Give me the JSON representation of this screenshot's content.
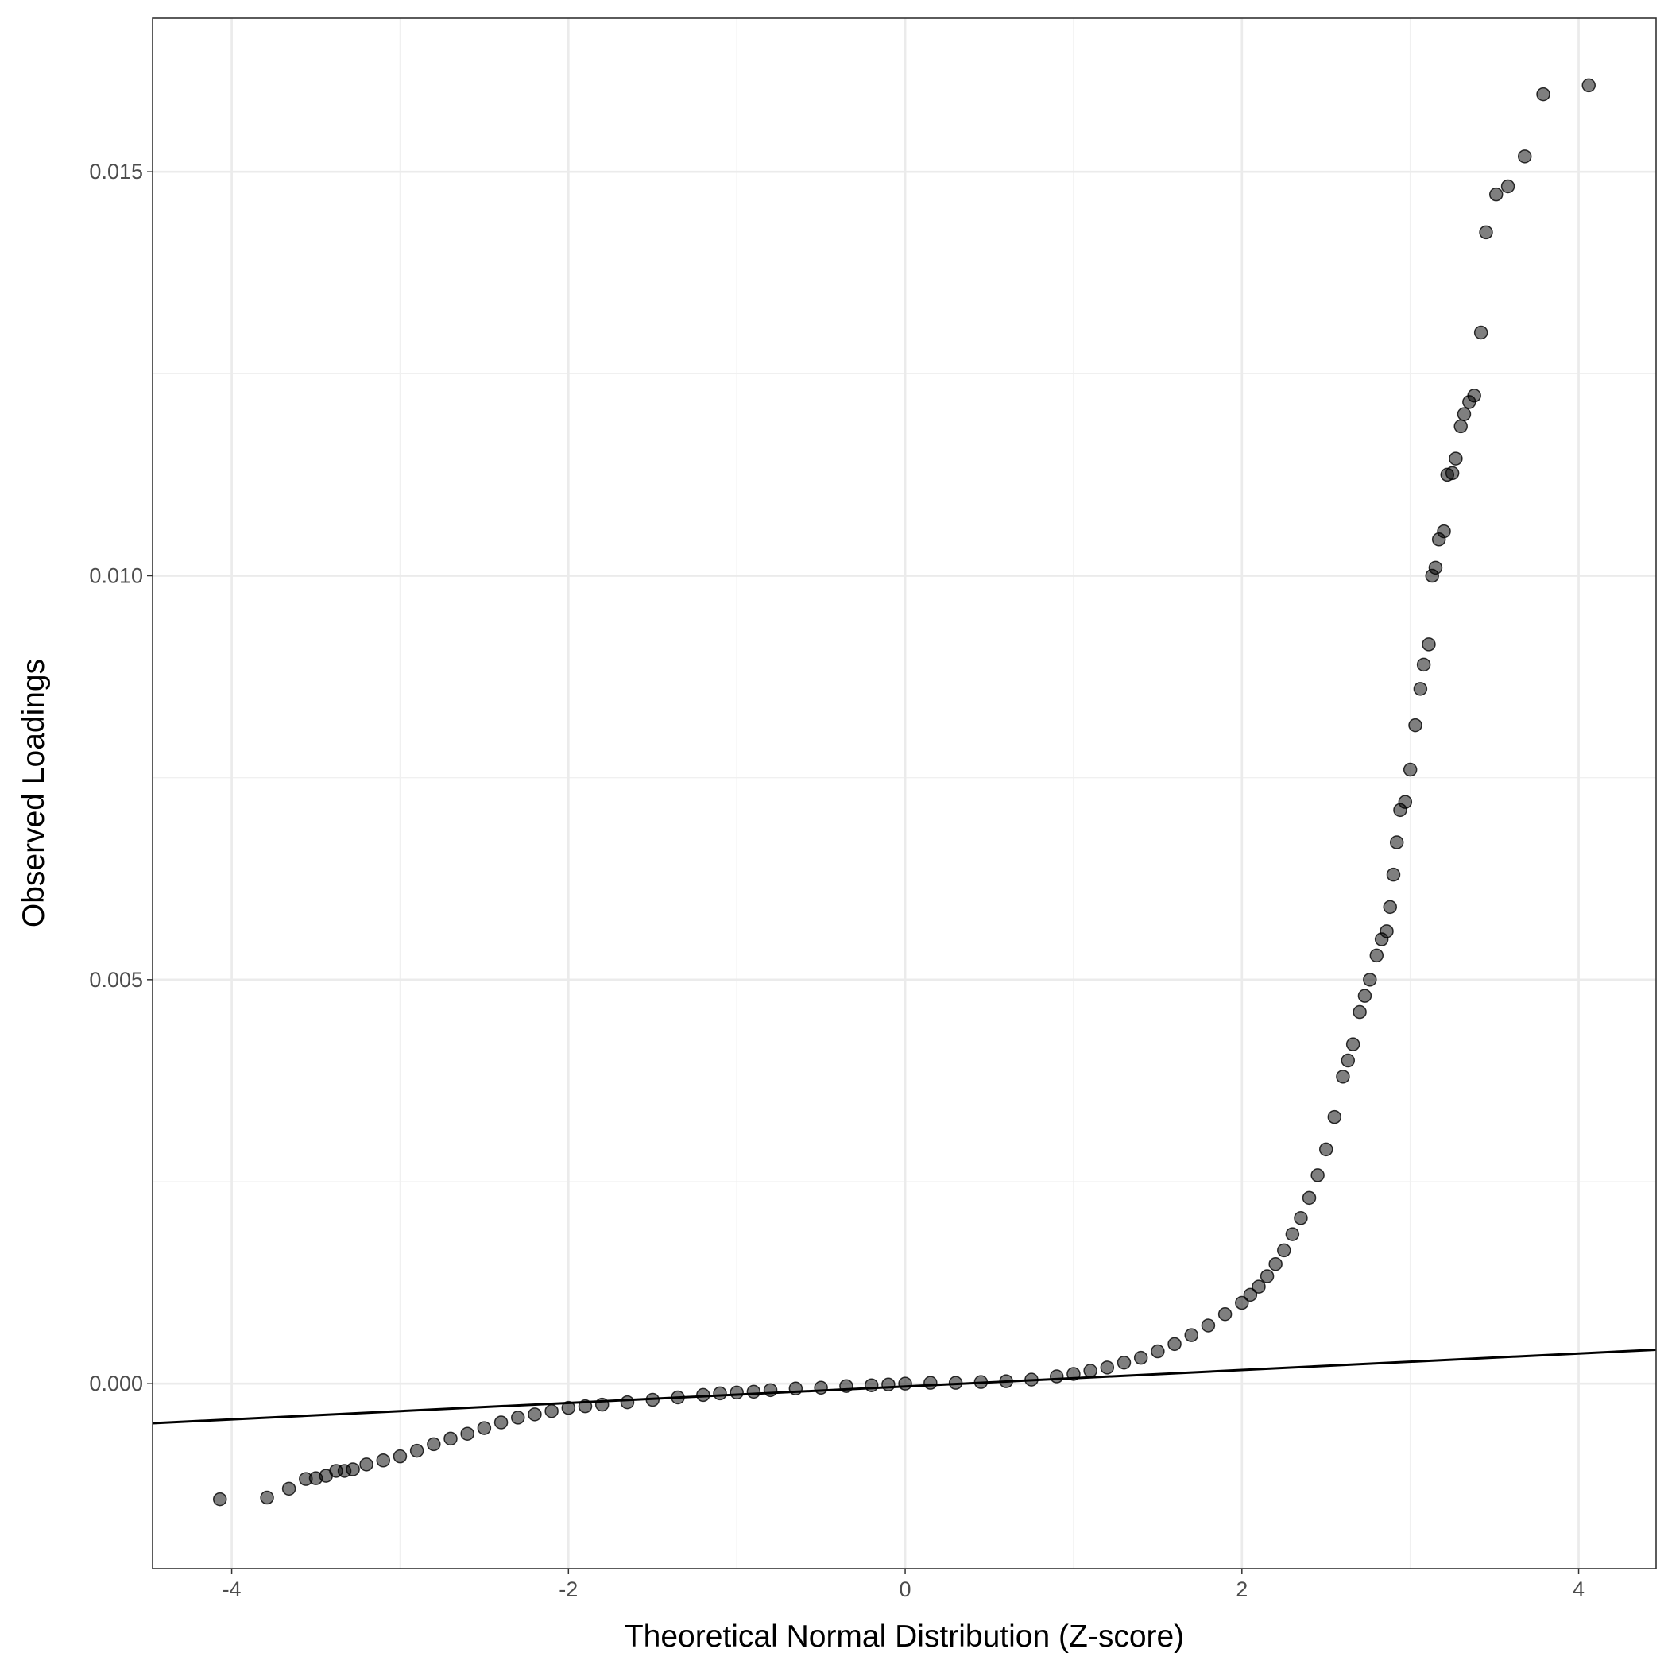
{
  "chart_data": {
    "type": "scatter",
    "x_label": "Theoretical Normal Distribution (Z-score)",
    "y_label": "Observed Loadings",
    "xlim": [
      -4.47,
      4.46
    ],
    "ylim": [
      -0.00229,
      0.0169
    ],
    "xticks": [
      -4,
      -2,
      0,
      2,
      4
    ],
    "yticks": [
      {
        "value": 0,
        "label": "0.000"
      },
      {
        "value": 0.005,
        "label": "0.005"
      },
      {
        "value": 0.01,
        "label": "0.010"
      },
      {
        "value": 0.015,
        "label": "0.015"
      }
    ],
    "grid": true,
    "color": "#000000",
    "reference_line": {
      "x": [
        -4.47,
        4.46
      ],
      "y": [
        -0.00049,
        0.00042
      ]
    },
    "x": [
      -4.07,
      -3.79,
      -3.66,
      -3.56,
      -3.5,
      -3.44,
      -3.38,
      -3.33,
      -3.28,
      -3.2,
      -3.1,
      -3.0,
      -2.9,
      -2.8,
      -2.7,
      -2.6,
      -2.5,
      -2.4,
      -2.3,
      -2.2,
      -2.1,
      -2.0,
      -1.9,
      -1.8,
      -1.65,
      -1.5,
      -1.35,
      -1.2,
      -1.1,
      -1.0,
      -0.9,
      -0.8,
      -0.65,
      -0.5,
      -0.35,
      -0.2,
      -0.1,
      0,
      0.15,
      0.3,
      0.45,
      0.6,
      0.75,
      0.9,
      1.0,
      1.1,
      1.2,
      1.3,
      1.4,
      1.5,
      1.6,
      1.7,
      1.8,
      1.9,
      2.0,
      2.05,
      2.1,
      2.15,
      2.2,
      2.25,
      2.3,
      2.35,
      2.4,
      2.45,
      2.5,
      2.55,
      2.6,
      2.63,
      2.66,
      2.7,
      2.73,
      2.76,
      2.8,
      2.83,
      2.86,
      2.88,
      2.9,
      2.92,
      2.94,
      2.97,
      3.0,
      3.03,
      3.06,
      3.08,
      3.11,
      3.13,
      3.15,
      3.17,
      3.2,
      3.22,
      3.25,
      3.27,
      3.3,
      3.32,
      3.35,
      3.38,
      3.42,
      3.45,
      3.51,
      3.58,
      3.68,
      3.79,
      4.06
    ],
    "values": [
      -0.00143,
      -0.00141,
      -0.0013,
      -0.00118,
      -0.00117,
      -0.00114,
      -0.00108,
      -0.00108,
      -0.00106,
      -0.001,
      -0.00095,
      -0.0009,
      -0.00083,
      -0.00075,
      -0.00068,
      -0.00062,
      -0.00055,
      -0.00048,
      -0.00042,
      -0.00038,
      -0.00034,
      -0.0003,
      -0.00028,
      -0.00026,
      -0.00023,
      -0.0002,
      -0.00017,
      -0.00014,
      -0.00012,
      -0.00011,
      -0.0001,
      -8e-05,
      -6e-05,
      -5e-05,
      -3e-05,
      -2e-05,
      -1e-05,
      0,
      1e-05,
      1e-05,
      2e-05,
      3e-05,
      5e-05,
      9e-05,
      0.00012,
      0.00016,
      0.0002,
      0.00026,
      0.00032,
      0.0004,
      0.00049,
      0.0006,
      0.00072,
      0.00086,
      0.001,
      0.0011,
      0.0012,
      0.00133,
      0.00148,
      0.00165,
      0.00185,
      0.00205,
      0.0023,
      0.00258,
      0.0029,
      0.0033,
      0.0038,
      0.004,
      0.0042,
      0.0046,
      0.0048,
      0.005,
      0.0053,
      0.0055,
      0.0056,
      0.0059,
      0.0063,
      0.0067,
      0.0071,
      0.0072,
      0.0076,
      0.00815,
      0.0086,
      0.0089,
      0.00915,
      0.01,
      0.0101,
      0.01045,
      0.01055,
      0.01125,
      0.01127,
      0.01145,
      0.01185,
      0.012,
      0.01215,
      0.01223,
      0.01301,
      0.01425,
      0.01472,
      0.01482,
      0.01519,
      0.01596,
      0.01607
    ]
  }
}
